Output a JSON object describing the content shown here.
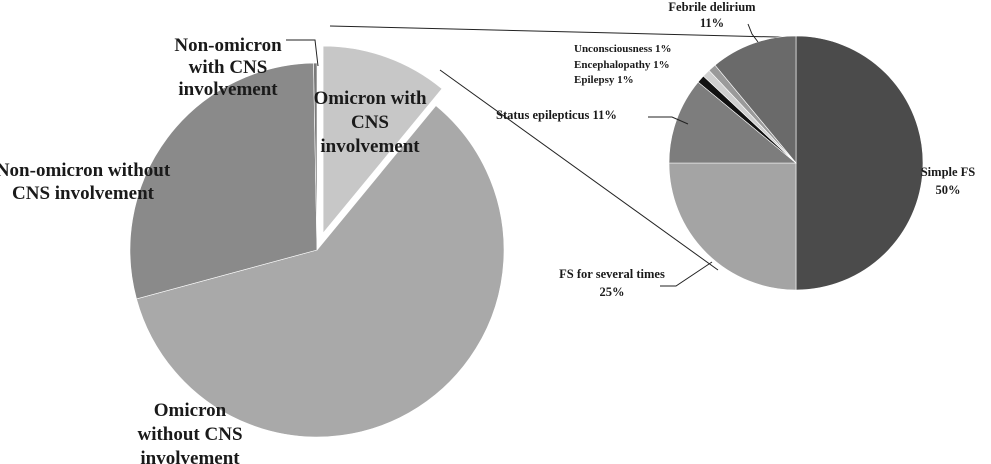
{
  "chart_data": [
    {
      "type": "pie",
      "name": "main",
      "slices": [
        {
          "label": "Omicron with CNS involvement",
          "lines": [
            "Omicron with",
            "CNS",
            "involvement"
          ],
          "value": 11,
          "color": "#c7c7c7",
          "exploded": true
        },
        {
          "label": "Omicron without CNS involvement",
          "lines": [
            "Omicron",
            "without CNS",
            "involvement"
          ],
          "value": 60,
          "color": "#a9a9a9"
        },
        {
          "label": "Non-omicron without CNS involvement",
          "lines": [
            "Non-omicron without",
            "CNS involvement"
          ],
          "value": 29,
          "color": "#8a8a8a"
        },
        {
          "label": "Non-omicron with CNS involvement",
          "lines": [
            "Non-omicron",
            "with CNS",
            "involvement"
          ],
          "value": 0.3,
          "color": "#7a7a7a"
        }
      ]
    },
    {
      "type": "pie",
      "name": "detail",
      "slices": [
        {
          "label": "Simple FS",
          "pct": "50%",
          "value": 50,
          "color": "#4b4b4b"
        },
        {
          "label": "FS for several times",
          "pct": "25%",
          "value": 25,
          "color": "#a4a4a4"
        },
        {
          "label": "Status epilepticus",
          "pct": "11%",
          "value": 11,
          "color": "#7d7d7d"
        },
        {
          "label": "Epilepsy",
          "pct": "1%",
          "value": 1,
          "color": "#111111"
        },
        {
          "label": "Encephalopathy",
          "pct": "1%",
          "value": 1,
          "color": "#cfcfcf"
        },
        {
          "label": "Unconsciousness",
          "pct": "1%",
          "value": 1,
          "color": "#9a9a9a"
        },
        {
          "label": "Febrile delirium",
          "pct": "11%",
          "value": 11,
          "color": "#6a6a6a"
        }
      ]
    }
  ]
}
